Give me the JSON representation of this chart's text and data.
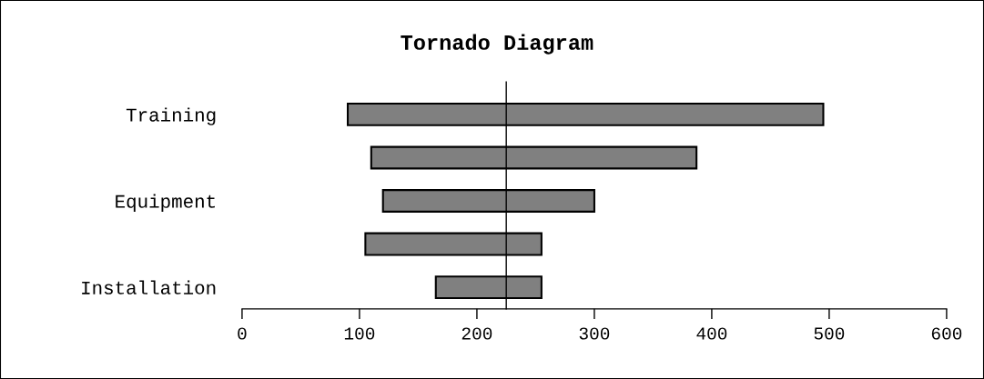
{
  "chart_data": {
    "type": "bar",
    "title": "Tornado Diagram",
    "orientation": "horizontal",
    "categories": [
      "Training",
      null,
      "Equipment",
      null,
      "Installation"
    ],
    "base": [
      90,
      110,
      120,
      105,
      165
    ],
    "values": [
      405,
      277,
      180,
      150,
      90
    ],
    "color": "#808080",
    "xlim": [
      0,
      600
    ],
    "xticks": [
      0,
      100,
      200,
      300,
      400,
      500,
      600
    ],
    "ref_lines": [
      {
        "axis": "x",
        "value": 225,
        "color": "#000000",
        "line_style": "solid"
      }
    ],
    "grid": false
  }
}
